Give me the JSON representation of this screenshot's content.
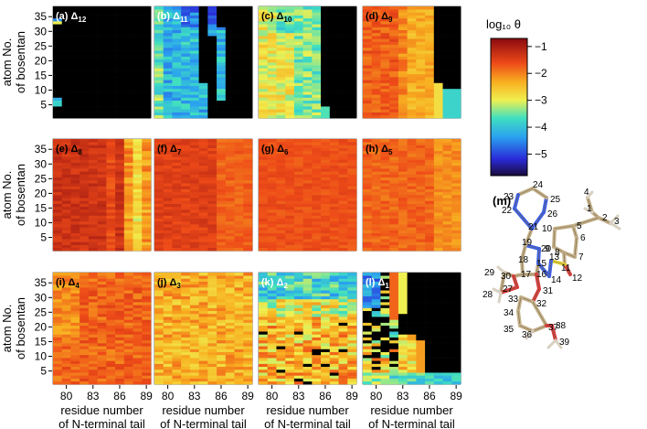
{
  "chart_data": {
    "type": "heatmap",
    "x_tick_labels": [
      "80",
      "83",
      "86",
      "89"
    ],
    "y_tick_labels": [
      "5",
      "10",
      "15",
      "20",
      "25",
      "30",
      "35"
    ],
    "xlabel": [
      "residue number",
      "of N-terminal tail"
    ],
    "ylabel": [
      "atom No.",
      "of bosentan"
    ],
    "colorbar": {
      "title": "log₁₀ θ",
      "ticks": [
        "−1",
        "−2",
        "−3",
        "−4",
        "−5"
      ],
      "tick_values": [
        -1,
        -2,
        -3,
        -4,
        -5
      ],
      "range": [
        -5.8,
        -0.7
      ]
    },
    "panels": [
      {
        "label": "(a)",
        "title": "Δ",
        "subscript": "12",
        "pattern": "a"
      },
      {
        "label": "(b)",
        "title": "Δ",
        "subscript": "11",
        "pattern": "b"
      },
      {
        "label": "(c)",
        "title": "Δ",
        "subscript": "10",
        "pattern": "c"
      },
      {
        "label": "(d)",
        "title": "Δ",
        "subscript": "9",
        "pattern": "d"
      },
      {
        "label": "(e)",
        "title": "Δ",
        "subscript": "8",
        "pattern": "e"
      },
      {
        "label": "(f)",
        "title": "Δ",
        "subscript": "7",
        "pattern": "f"
      },
      {
        "label": "(g)",
        "title": "Δ",
        "subscript": "6",
        "pattern": "g"
      },
      {
        "label": "(h)",
        "title": "Δ",
        "subscript": "5",
        "pattern": "h"
      },
      {
        "label": "(i)",
        "title": "Δ",
        "subscript": "4",
        "pattern": "i"
      },
      {
        "label": "(j)",
        "title": "Δ",
        "subscript": "3",
        "pattern": "j"
      },
      {
        "label": "(k)",
        "title": "Δ",
        "subscript": "2",
        "pattern": "k"
      },
      {
        "label": "(l)",
        "title": "Δ",
        "subscript": "1",
        "pattern": "l"
      }
    ],
    "grid": {
      "rows": 3,
      "cols": 4,
      "x_residues": [
        79,
        89
      ],
      "y_atoms": [
        1,
        38
      ]
    }
  },
  "molecule": {
    "label": "(m)",
    "atom_numbers": [
      "1",
      "2",
      "3",
      "4",
      "5",
      "6",
      "7",
      "8",
      "9",
      "10",
      "11",
      "12",
      "13",
      "14",
      "15",
      "16",
      "17",
      "18",
      "19",
      "20",
      "21",
      "22",
      "23",
      "24",
      "25",
      "26",
      "27",
      "28",
      "29",
      "30",
      "31",
      "32",
      "33",
      "34",
      "35",
      "36",
      "37",
      "38",
      "39"
    ]
  }
}
